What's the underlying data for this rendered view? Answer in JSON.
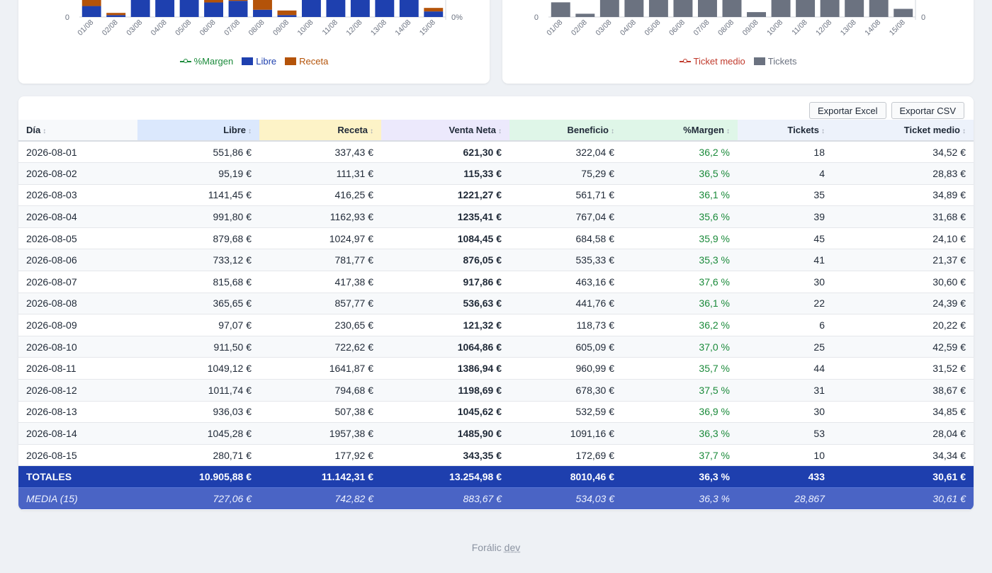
{
  "charts": {
    "ventas": {
      "chart_data": {
        "type": "bar",
        "stacked": true,
        "categories": [
          "01/08",
          "02/08",
          "03/08",
          "04/08",
          "05/08",
          "06/08",
          "07/08",
          "08/08",
          "09/08",
          "10/08",
          "11/08",
          "12/08",
          "13/08",
          "14/08",
          "15/08"
        ],
        "series": [
          {
            "name": "Libre",
            "color": "#1e40af",
            "values": [
              551.86,
              95.19,
              1141.45,
              991.8,
              879.68,
              733.12,
              815.68,
              365.65,
              97.07,
              911.5,
              1049.12,
              1011.74,
              936.03,
              1045.28,
              280.71
            ]
          },
          {
            "name": "Receta",
            "color": "#b45309",
            "values": [
              337.43,
              111.31,
              416.25,
              1162.93,
              1024.97,
              781.77,
              417.38,
              857.77,
              230.65,
              722.62,
              1641.87,
              794.68,
              507.38,
              1957.38,
              177.92
            ]
          },
          {
            "name": "%Margen",
            "color": "#1a8a3a",
            "type": "line",
            "axis": "right"
          }
        ],
        "y_left_bottom_label": "0",
        "y_right_bottom_label": "0%"
      }
    },
    "tickets": {
      "chart_data": {
        "type": "bar",
        "categories": [
          "01/08",
          "02/08",
          "03/08",
          "04/08",
          "05/08",
          "06/08",
          "07/08",
          "08/08",
          "09/08",
          "10/08",
          "11/08",
          "12/08",
          "13/08",
          "14/08",
          "15/08"
        ],
        "series": [
          {
            "name": "Tickets",
            "color": "#6b7280",
            "values": [
              18,
              4,
              35,
              39,
              45,
              41,
              30,
              22,
              6,
              25,
              44,
              31,
              30,
              53,
              10
            ]
          },
          {
            "name": "Ticket medio",
            "color": "#c0392b",
            "type": "line",
            "axis": "right"
          }
        ],
        "y_left_bottom_label": "0",
        "y_right_bottom_label": "0"
      }
    }
  },
  "legend_ventas": [
    {
      "label": "%Margen",
      "kind": "line",
      "color": "#1a8a3a"
    },
    {
      "label": "Libre",
      "kind": "box",
      "color": "#1e40af"
    },
    {
      "label": "Receta",
      "kind": "box",
      "color": "#b45309"
    }
  ],
  "legend_tickets": [
    {
      "label": "Ticket medio",
      "kind": "line",
      "color": "#c0392b"
    },
    {
      "label": "Tickets",
      "kind": "box",
      "color": "#6b7280"
    }
  ],
  "toolbar": {
    "export_excel": "Exportar Excel",
    "export_csv": "Exportar CSV"
  },
  "table": {
    "headers": [
      {
        "label": "Día",
        "bg": "#f7f9fb"
      },
      {
        "label": "Libre",
        "bg": "#dbe8fd"
      },
      {
        "label": "Receta",
        "bg": "#fdf3c7"
      },
      {
        "label": "Venta Neta",
        "bg": "#ece9fc"
      },
      {
        "label": "Beneficio",
        "bg": "#dff6e8"
      },
      {
        "label": "%Margen",
        "bg": "#dff6e8"
      },
      {
        "label": "Tickets",
        "bg": "#edf2fb"
      },
      {
        "label": "Ticket medio",
        "bg": "#edf2fb"
      }
    ],
    "rows": [
      [
        "2026-08-01",
        "551,86 €",
        "337,43 €",
        "621,30 €",
        "322,04 €",
        "36,2 %",
        "18",
        "34,52 €"
      ],
      [
        "2026-08-02",
        "95,19 €",
        "111,31 €",
        "115,33 €",
        "75,29 €",
        "36,5 %",
        "4",
        "28,83 €"
      ],
      [
        "2026-08-03",
        "1141,45 €",
        "416,25 €",
        "1221,27 €",
        "561,71 €",
        "36,1 %",
        "35",
        "34,89 €"
      ],
      [
        "2026-08-04",
        "991,80 €",
        "1162,93 €",
        "1235,41 €",
        "767,04 €",
        "35,6 %",
        "39",
        "31,68 €"
      ],
      [
        "2026-08-05",
        "879,68 €",
        "1024,97 €",
        "1084,45 €",
        "684,58 €",
        "35,9 %",
        "45",
        "24,10 €"
      ],
      [
        "2026-08-06",
        "733,12 €",
        "781,77 €",
        "876,05 €",
        "535,33 €",
        "35,3 %",
        "41",
        "21,37 €"
      ],
      [
        "2026-08-07",
        "815,68 €",
        "417,38 €",
        "917,86 €",
        "463,16 €",
        "37,6 %",
        "30",
        "30,60 €"
      ],
      [
        "2026-08-08",
        "365,65 €",
        "857,77 €",
        "536,63 €",
        "441,76 €",
        "36,1 %",
        "22",
        "24,39 €"
      ],
      [
        "2026-08-09",
        "97,07 €",
        "230,65 €",
        "121,32 €",
        "118,73 €",
        "36,2 %",
        "6",
        "20,22 €"
      ],
      [
        "2026-08-10",
        "911,50 €",
        "722,62 €",
        "1064,86 €",
        "605,09 €",
        "37,0 %",
        "25",
        "42,59 €"
      ],
      [
        "2026-08-11",
        "1049,12 €",
        "1641,87 €",
        "1386,94 €",
        "960,99 €",
        "35,7 %",
        "44",
        "31,52 €"
      ],
      [
        "2026-08-12",
        "1011,74 €",
        "794,68 €",
        "1198,69 €",
        "678,30 €",
        "37,5 %",
        "31",
        "38,67 €"
      ],
      [
        "2026-08-13",
        "936,03 €",
        "507,38 €",
        "1045,62 €",
        "532,59 €",
        "36,9 %",
        "30",
        "34,85 €"
      ],
      [
        "2026-08-14",
        "1045,28 €",
        "1957,38 €",
        "1485,90 €",
        "1091,16 €",
        "36,3 %",
        "53",
        "28,04 €"
      ],
      [
        "2026-08-15",
        "280,71 €",
        "177,92 €",
        "343,35 €",
        "172,69 €",
        "37,7 %",
        "10",
        "34,34 €"
      ]
    ],
    "totals": [
      "TOTALES",
      "10.905,88 €",
      "11.142,31 €",
      "13.254,98 €",
      "8010,46 €",
      "36,3 %",
      "433",
      "30,61 €"
    ],
    "media": [
      "MEDIA (15)",
      "727,06 €",
      "742,82 €",
      "883,67 €",
      "534,03 €",
      "36,3 %",
      "28,867",
      "30,61 €"
    ]
  },
  "footer": {
    "brand": "Forálic",
    "env": "dev"
  }
}
